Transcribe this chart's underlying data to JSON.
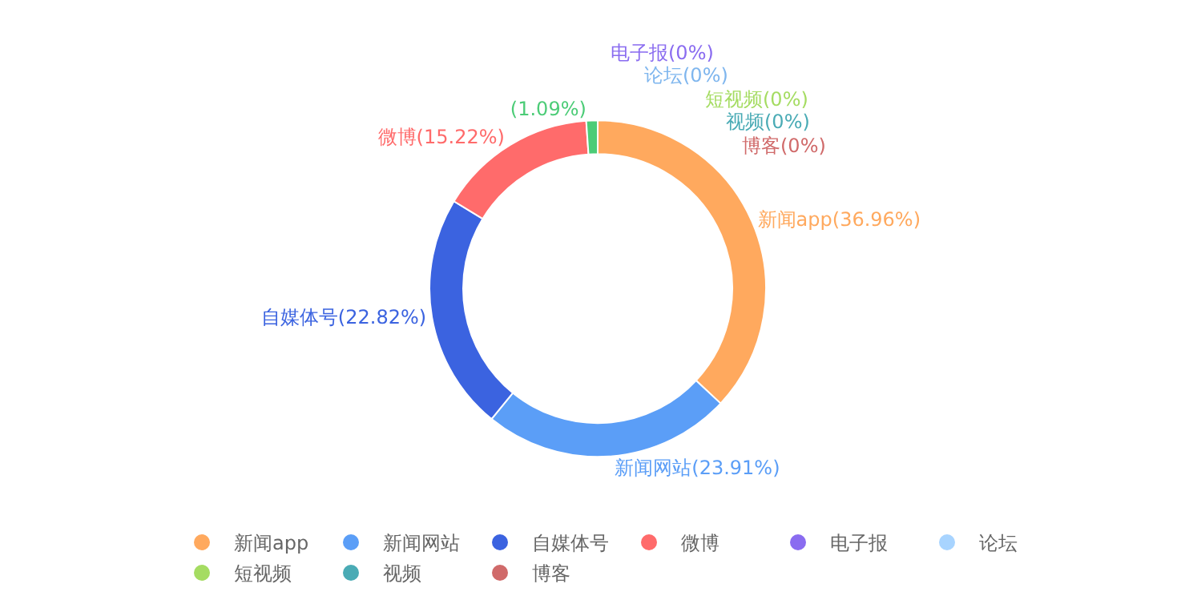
{
  "chart_data": {
    "type": "donut",
    "categories": [
      "新闻app",
      "新闻网站",
      "自媒体号",
      "微博",
      null,
      "电子报",
      "论坛",
      "短视频",
      "视频",
      "博客"
    ],
    "values": [
      36.96,
      23.91,
      22.82,
      15.22,
      1.09,
      0,
      0,
      0,
      0,
      0
    ],
    "value_labels": [
      "新闻app(36.96%)",
      "新闻网站(23.91%)",
      "自媒体号(22.82%)",
      "微博(15.22%)",
      "(1.09%)",
      "电子报(0%)",
      "论坛(0%)",
      "短视频(0%)",
      "视频(0%)",
      "博客(0%)"
    ],
    "colors": [
      "#ffa95e",
      "#5b9ef7",
      "#3b63e0",
      "#ff6b6b",
      "#4ccc77",
      "#8a6cf0",
      "#a8d4ff",
      "#a5dc62",
      "#4aabb5",
      "#d06a6a"
    ],
    "legend": "bottom"
  }
}
